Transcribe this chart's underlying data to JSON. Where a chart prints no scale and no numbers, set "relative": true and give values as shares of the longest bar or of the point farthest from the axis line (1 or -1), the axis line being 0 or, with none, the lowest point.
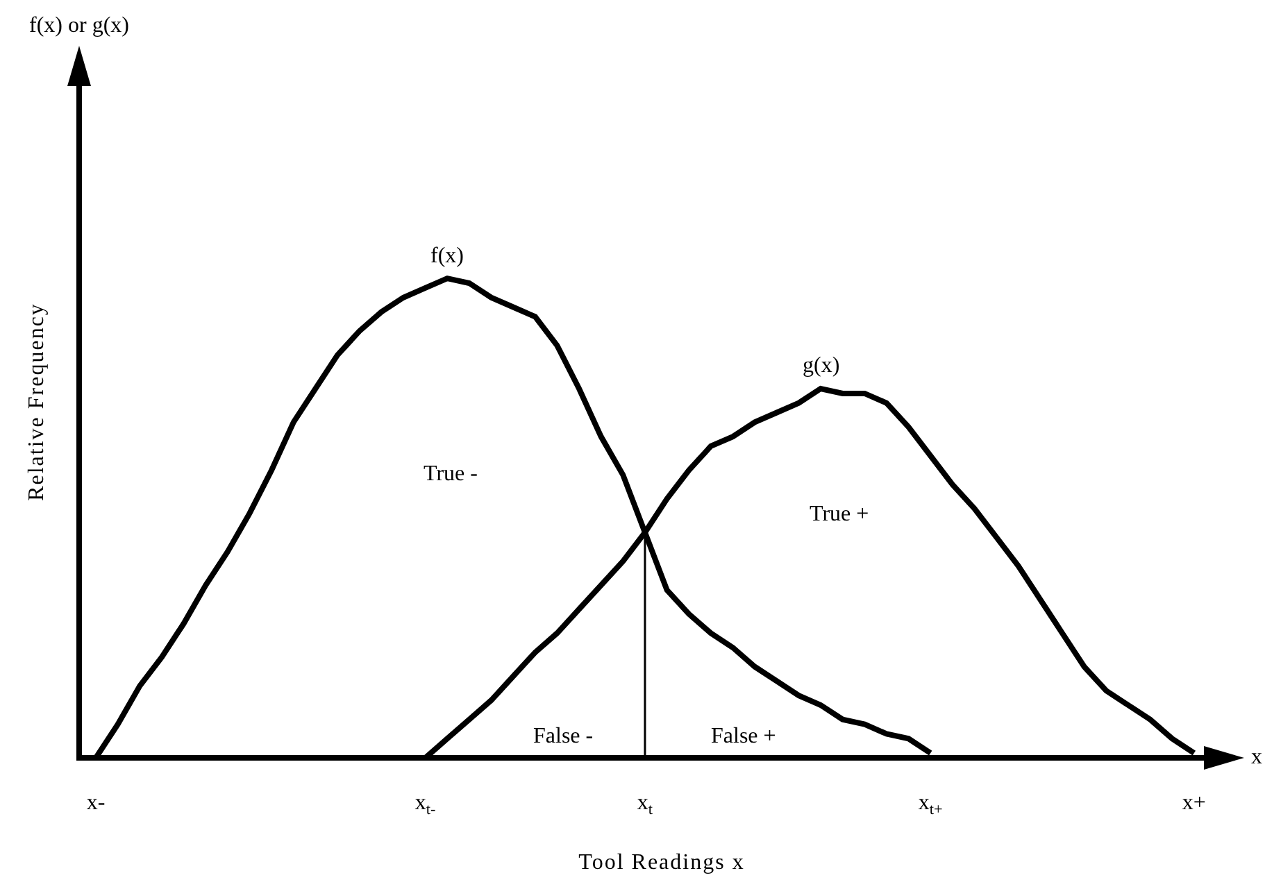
{
  "chart_data": {
    "type": "line",
    "relative": true,
    "xlabel": "Tool Readings x",
    "ylabel": "Relative Frequency",
    "categories": [
      "x-",
      null,
      null,
      null,
      null,
      null,
      null,
      null,
      null,
      null,
      null,
      null,
      null,
      null,
      null,
      "x$_{t-}$",
      null,
      null,
      null,
      null,
      null,
      null,
      null,
      null,
      null,
      "x$_{t}$",
      null,
      null,
      null,
      null,
      null,
      null,
      null,
      null,
      null,
      null,
      null,
      null,
      "x$_{t+}$",
      null,
      null,
      null,
      null,
      null,
      null,
      null,
      null,
      null,
      null,
      null,
      "x+"
    ],
    "annotations": [
      "f(x) or g(x)",
      "x",
      "True -",
      "True +",
      "False -",
      "False +"
    ],
    "series": [
      {
        "name": "f(x)",
        "color": "#000000",
        "values": [
          0,
          0.07,
          0.15,
          0.21,
          0.28,
          0.36,
          0.43,
          0.51,
          0.6,
          0.7,
          0.77,
          0.84,
          0.89,
          0.93,
          0.96,
          0.98,
          1,
          0.99,
          0.96,
          0.94,
          0.92,
          0.86,
          0.77,
          0.67,
          0.59,
          0.47,
          0.35,
          0.3,
          0.26,
          0.23,
          0.19,
          0.16,
          0.13,
          0.11,
          0.08,
          0.07,
          0.05,
          0.04,
          0.01,
          null,
          null,
          null,
          null,
          null,
          null,
          null,
          null,
          null,
          null,
          null,
          null
        ]
      },
      {
        "name": "g(x)",
        "color": "#000000",
        "values": [
          null,
          null,
          null,
          null,
          null,
          null,
          null,
          null,
          null,
          null,
          null,
          null,
          null,
          null,
          null,
          0,
          0.04,
          0.08,
          0.12,
          0.17,
          0.22,
          0.26,
          0.31,
          0.36,
          0.41,
          0.47,
          0.54,
          0.6,
          0.65,
          0.67,
          0.7,
          0.72,
          0.74,
          0.77,
          0.76,
          0.76,
          0.74,
          0.69,
          0.63,
          0.57,
          0.52,
          0.46,
          0.4,
          0.33,
          0.26,
          0.19,
          0.14,
          0.11,
          0.08,
          0.04,
          0.01
        ]
      }
    ],
    "ref_lines": [
      {
        "axis": "x",
        "value": "x$_{t}$",
        "color": "#000000"
      }
    ]
  }
}
